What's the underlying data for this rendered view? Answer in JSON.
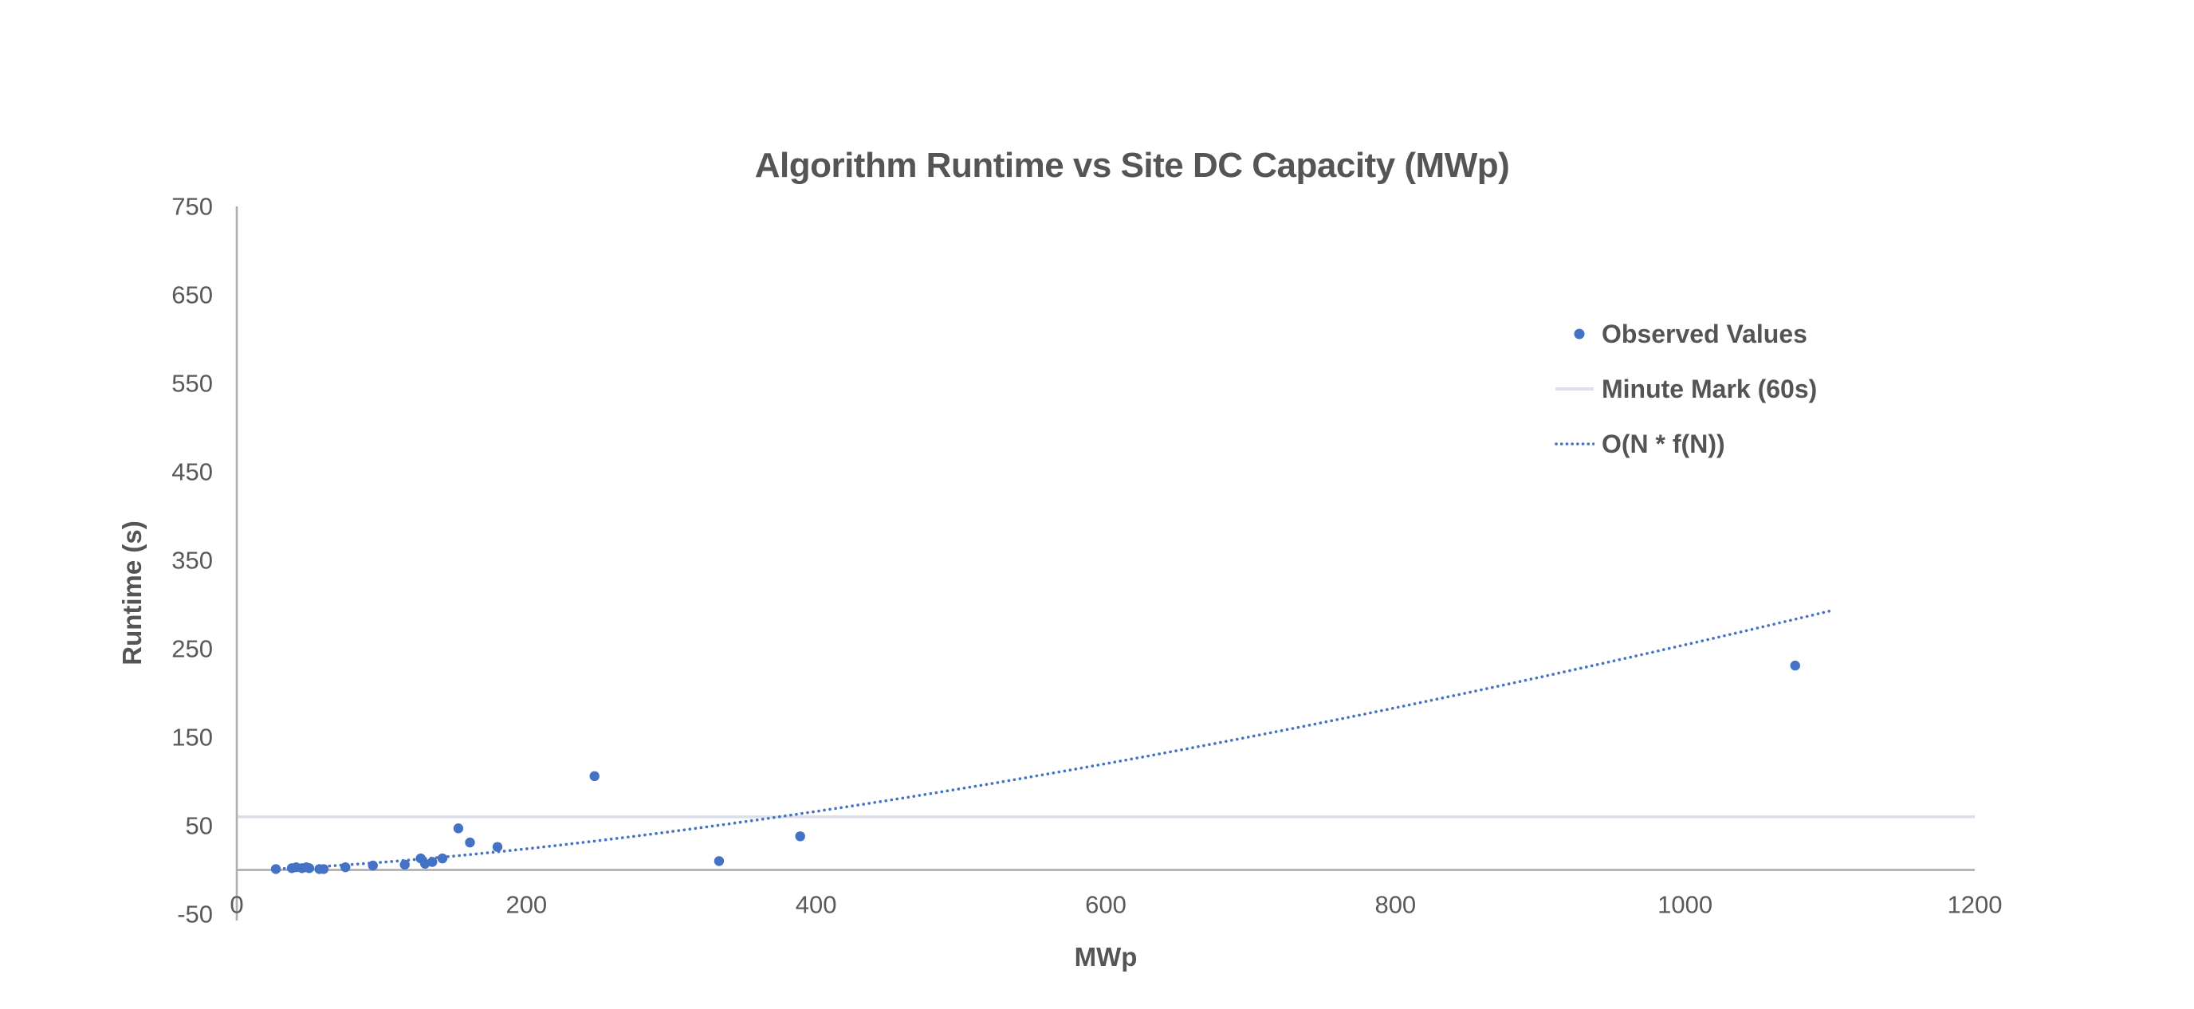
{
  "chart_data": {
    "type": "scatter",
    "title": "Algorithm Runtime vs Site DC Capacity (MWp)",
    "xlabel": "MWp",
    "ylabel": "Runtime (s)",
    "xlim": [
      0,
      1200
    ],
    "ylim": [
      -50,
      750
    ],
    "x_ticks": [
      0,
      200,
      400,
      600,
      800,
      1000,
      1200
    ],
    "y_ticks": [
      750,
      650,
      550,
      450,
      350,
      250,
      150,
      50,
      -50
    ],
    "grid": false,
    "legend_position": "right",
    "colors": {
      "point_blue": "#4472C4",
      "trend_blue": "#4472C4",
      "minute_line": "#D9DEE8",
      "axis_line": "#B0B0B0",
      "tick_text": "#595959"
    },
    "series": [
      {
        "name": "Observed Values",
        "type": "scatter",
        "marker": "circle",
        "color": "#4472C4",
        "points": [
          [
            27,
            1
          ],
          [
            38,
            2
          ],
          [
            41,
            3
          ],
          [
            45,
            2
          ],
          [
            48,
            3
          ],
          [
            50,
            2
          ],
          [
            57,
            1
          ],
          [
            60,
            1
          ],
          [
            75,
            3
          ],
          [
            94,
            5
          ],
          [
            116,
            6
          ],
          [
            127,
            13
          ],
          [
            130,
            7
          ],
          [
            135,
            9
          ],
          [
            142,
            13
          ],
          [
            153,
            47
          ],
          [
            161,
            31
          ],
          [
            180,
            26
          ],
          [
            247,
            106
          ],
          [
            333,
            10
          ],
          [
            389,
            38
          ],
          [
            1076,
            231
          ]
        ]
      },
      {
        "name": "Minute Mark (60s)",
        "type": "hline",
        "color": "#D9DEE8",
        "y": 60
      },
      {
        "name": "O(N * f(N))",
        "type": "curve",
        "style": "dotted",
        "color": "#4472C4",
        "formula": "y = a * x^b",
        "a": 0.0099,
        "b": 1.47,
        "x_range": [
          25,
          1100
        ]
      }
    ]
  }
}
